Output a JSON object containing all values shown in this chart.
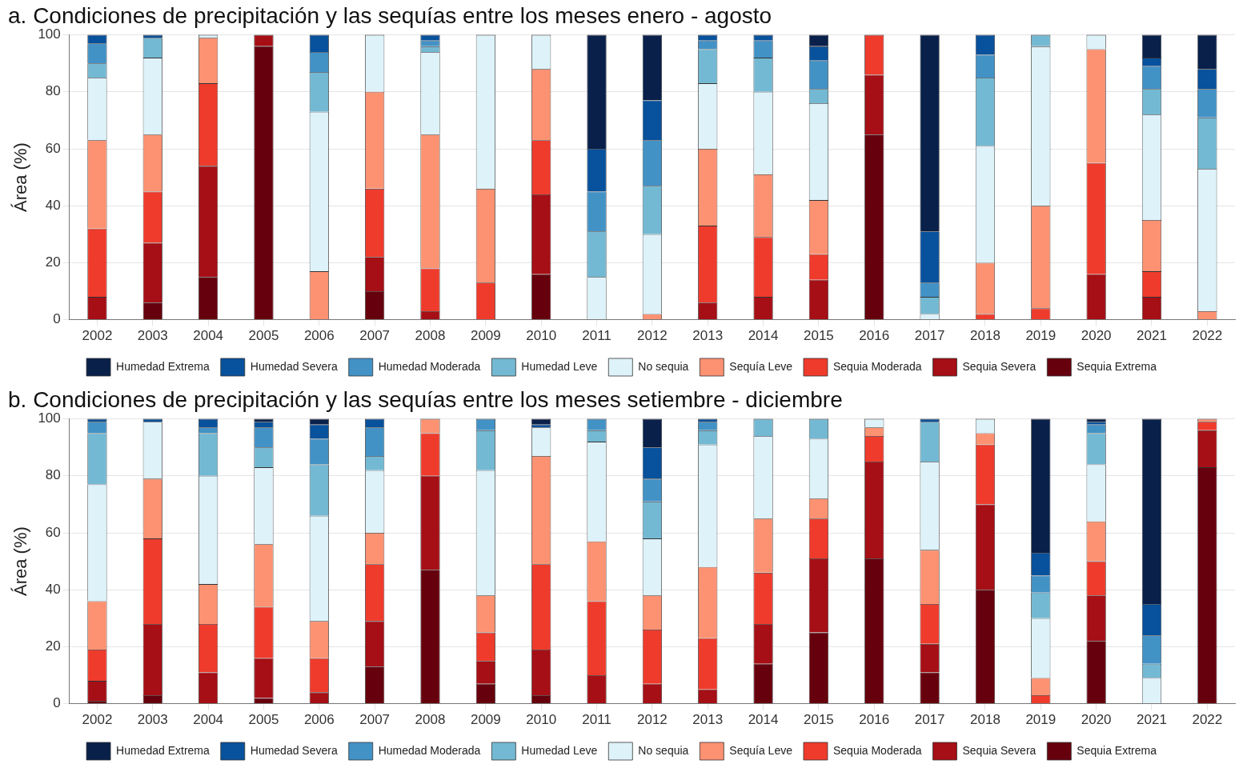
{
  "chart_data": [
    {
      "type": "bar",
      "stacked": true,
      "title": "a. Condiciones de precipitación y las sequías entre los meses enero - agosto",
      "ylabel": "Área (%)",
      "categories": [
        "2002",
        "2003",
        "2004",
        "2005",
        "2006",
        "2007",
        "2008",
        "2009",
        "2010",
        "2011",
        "2012",
        "2013",
        "2014",
        "2015",
        "2016",
        "2017",
        "2018",
        "2019",
        "2020",
        "2021",
        "2022"
      ],
      "ylim": [
        0,
        100
      ],
      "yticks": [
        0,
        20,
        40,
        60,
        80,
        100
      ],
      "grid": true,
      "legend": "bottom",
      "series": [
        {
          "name": "Sequia Extrema",
          "color": "#67000d",
          "values": [
            0,
            6,
            15,
            96,
            0,
            10,
            0,
            0,
            16,
            0,
            0,
            0,
            0,
            0,
            65,
            0,
            0,
            0,
            0,
            0,
            0
          ]
        },
        {
          "name": "Sequia Severa",
          "color": "#a50f15",
          "values": [
            8,
            21,
            39,
            4,
            0,
            12,
            3,
            0,
            28,
            0,
            0,
            6,
            8,
            14,
            21,
            0,
            0,
            0,
            16,
            8,
            0
          ]
        },
        {
          "name": "Sequia Moderada",
          "color": "#ef3b2c",
          "values": [
            24,
            18,
            29,
            0,
            0,
            24,
            15,
            13,
            19,
            0,
            0,
            27,
            21,
            9,
            14,
            0,
            2,
            4,
            39,
            9,
            0
          ]
        },
        {
          "name": "Sequía Leve",
          "color": "#fc9272",
          "values": [
            31,
            20,
            16,
            0,
            17,
            34,
            47,
            33,
            25,
            0,
            2,
            27,
            22,
            19,
            0,
            0,
            18,
            36,
            40,
            18,
            3
          ]
        },
        {
          "name": "No sequia",
          "color": "#def2fa",
          "values": [
            22,
            27,
            1,
            0,
            56,
            20,
            29,
            54,
            12,
            15,
            28,
            23,
            29,
            34,
            0,
            2,
            41,
            56,
            5,
            37,
            50
          ]
        },
        {
          "name": "Humedad Leve",
          "color": "#74b9d3",
          "values": [
            5,
            7,
            0,
            0,
            14,
            0,
            2,
            0,
            0,
            16,
            17,
            12,
            12,
            5,
            0,
            6,
            24,
            4,
            0,
            9,
            18
          ]
        },
        {
          "name": "Humedad Moderada",
          "color": "#4292c6",
          "values": [
            7,
            0,
            0,
            0,
            7,
            0,
            2,
            0,
            0,
            14,
            16,
            3,
            6,
            10,
            0,
            5,
            8,
            0,
            0,
            8,
            10
          ]
        },
        {
          "name": "Humedad Severa",
          "color": "#08519c",
          "values": [
            3,
            1,
            0,
            0,
            6,
            0,
            2,
            0,
            0,
            15,
            14,
            2,
            2,
            5,
            0,
            18,
            7,
            0,
            0,
            3,
            7
          ]
        },
        {
          "name": "Humedad Extrema",
          "color": "#08204a",
          "values": [
            0,
            0,
            0,
            0,
            0,
            0,
            0,
            0,
            0,
            40,
            23,
            0,
            0,
            4,
            0,
            69,
            0,
            0,
            0,
            8,
            12
          ]
        }
      ]
    },
    {
      "type": "bar",
      "stacked": true,
      "title": "b. Condiciones de precipitación y las sequías entre los meses setiembre - diciembre",
      "ylabel": "Área (%)",
      "categories": [
        "2002",
        "2003",
        "2004",
        "2005",
        "2006",
        "2007",
        "2008",
        "2009",
        "2010",
        "2011",
        "2012",
        "2013",
        "2014",
        "2015",
        "2016",
        "2017",
        "2018",
        "2019",
        "2020",
        "2021",
        "2022"
      ],
      "ylim": [
        0,
        100
      ],
      "yticks": [
        0,
        20,
        40,
        60,
        80,
        100
      ],
      "grid": true,
      "legend": "bottom",
      "series": [
        {
          "name": "Sequia Extrema",
          "color": "#67000d",
          "values": [
            1,
            3,
            0,
            2,
            0,
            13,
            47,
            7,
            3,
            0,
            0,
            0,
            14,
            25,
            51,
            11,
            40,
            0,
            22,
            0,
            83
          ]
        },
        {
          "name": "Sequia Severa",
          "color": "#a50f15",
          "values": [
            7,
            25,
            11,
            14,
            4,
            16,
            33,
            8,
            16,
            10,
            7,
            5,
            14,
            26,
            34,
            10,
            30,
            0,
            16,
            0,
            13
          ]
        },
        {
          "name": "Sequia Moderada",
          "color": "#ef3b2c",
          "values": [
            11,
            30,
            17,
            18,
            12,
            20,
            15,
            10,
            30,
            26,
            19,
            18,
            18,
            14,
            9,
            14,
            21,
            3,
            12,
            0,
            3
          ]
        },
        {
          "name": "Sequía Leve",
          "color": "#fc9272",
          "values": [
            17,
            21,
            14,
            22,
            13,
            11,
            5,
            13,
            38,
            21,
            12,
            25,
            19,
            7,
            3,
            19,
            4,
            6,
            14,
            0,
            1
          ]
        },
        {
          "name": "No sequia",
          "color": "#def2fa",
          "values": [
            41,
            20,
            38,
            27,
            37,
            22,
            0,
            44,
            10,
            35,
            20,
            43,
            29,
            21,
            3,
            31,
            5,
            21,
            20,
            9,
            0
          ]
        },
        {
          "name": "Humedad Leve",
          "color": "#74b9d3",
          "values": [
            18,
            0,
            15,
            7,
            18,
            5,
            0,
            14,
            0,
            4,
            13,
            5,
            6,
            7,
            0,
            14,
            0,
            9,
            11,
            5,
            0
          ]
        },
        {
          "name": "Humedad Moderada",
          "color": "#4292c6",
          "values": [
            4,
            0,
            2,
            7,
            9,
            10,
            0,
            4,
            0,
            4,
            8,
            3,
            0,
            0,
            0,
            0,
            0,
            6,
            3,
            10,
            0
          ]
        },
        {
          "name": "Humedad Severa",
          "color": "#08519c",
          "values": [
            1,
            1,
            3,
            2,
            5,
            3,
            0,
            0,
            1,
            0,
            11,
            1,
            0,
            0,
            0,
            1,
            0,
            8,
            1,
            11,
            0
          ]
        },
        {
          "name": "Humedad Extrema",
          "color": "#08204a",
          "values": [
            0,
            0,
            0,
            1,
            2,
            0,
            0,
            0,
            2,
            0,
            10,
            0,
            0,
            0,
            0,
            0,
            0,
            47,
            1,
            65,
            0
          ]
        }
      ]
    }
  ]
}
